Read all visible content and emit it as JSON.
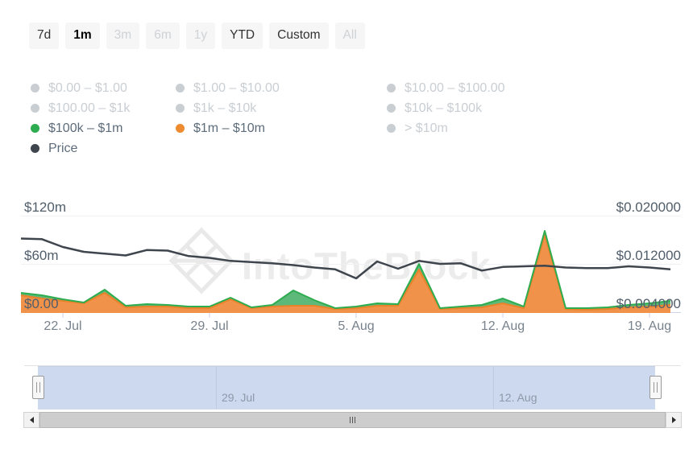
{
  "range_selector": {
    "buttons": [
      {
        "label": "7d",
        "state": "enabled"
      },
      {
        "label": "1m",
        "state": "selected"
      },
      {
        "label": "3m",
        "state": "disabled"
      },
      {
        "label": "6m",
        "state": "disabled"
      },
      {
        "label": "1y",
        "state": "disabled"
      },
      {
        "label": "YTD",
        "state": "enabled"
      },
      {
        "label": "Custom",
        "state": "enabled"
      },
      {
        "label": "All",
        "state": "disabled"
      }
    ]
  },
  "legend": {
    "items": [
      {
        "label": "$0.00 – $1.00",
        "active": false,
        "color": "#c9ced3"
      },
      {
        "label": "$1.00 – $10.00",
        "active": false,
        "color": "#c9ced3"
      },
      {
        "label": "$10.00 – $100.00",
        "active": false,
        "color": "#c9ced3"
      },
      {
        "label": "$100.00 – $1k",
        "active": false,
        "color": "#c9ced3"
      },
      {
        "label": "$1k – $10k",
        "active": false,
        "color": "#c9ced3"
      },
      {
        "label": "$10k – $100k",
        "active": false,
        "color": "#c9ced3"
      },
      {
        "label": "$100k – $1m",
        "active": true,
        "color": "#2eac50"
      },
      {
        "label": "$1m – $10m",
        "active": true,
        "color": "#ee8a2f"
      },
      {
        "label": "> $10m",
        "active": false,
        "color": "#c9ced3"
      },
      {
        "label": "Price",
        "active": true,
        "color": "#3e454d"
      }
    ]
  },
  "watermark": {
    "text": "IntoTheBlock"
  },
  "chart_data": {
    "type": "area",
    "subtype": "stacked areas (volume buckets, left axis $m) with overlaid price line (right axis $)",
    "x_tick_labels": [
      "22. Jul",
      "29. Jul",
      "5. Aug",
      "12. Aug",
      "19. Aug"
    ],
    "dates": [
      "20 Jul",
      "21 Jul",
      "22 Jul",
      "23 Jul",
      "24 Jul",
      "25 Jul",
      "26 Jul",
      "27 Jul",
      "28 Jul",
      "29 Jul",
      "30 Jul",
      "31 Jul",
      "1 Aug",
      "2 Aug",
      "3 Aug",
      "4 Aug",
      "5 Aug",
      "6 Aug",
      "7 Aug",
      "8 Aug",
      "9 Aug",
      "10 Aug",
      "11 Aug",
      "12 Aug",
      "13 Aug",
      "14 Aug",
      "15 Aug",
      "16 Aug",
      "17 Aug",
      "18 Aug",
      "19 Aug",
      "20 Aug"
    ],
    "left_axis": {
      "labels": [
        "$120m",
        "$60m",
        "$0.00"
      ],
      "values_m": [
        120,
        60,
        0
      ]
    },
    "right_axis": {
      "labels": [
        "$0.020000",
        "$0.012000",
        "$0.004000"
      ],
      "values_usd": [
        0.02,
        0.012,
        0.004
      ]
    },
    "grid": true,
    "legend_position": "top-left",
    "series": [
      {
        "name": "$100k – $1m",
        "type": "area",
        "stacked": true,
        "axis": "left",
        "unit": "$m",
        "stroke": "#2eac50",
        "fill": "#5cb97a",
        "values_m": [
          3,
          4,
          2,
          1,
          4,
          2,
          3,
          2,
          2,
          2,
          2,
          1,
          2,
          19,
          7,
          1,
          2,
          3,
          2,
          7,
          1,
          2,
          3,
          6,
          2,
          5,
          1,
          2,
          2,
          3,
          4,
          5
        ]
      },
      {
        "name": "$1m – $10m",
        "type": "area",
        "stacked": true,
        "axis": "left",
        "unit": "$m",
        "stroke": "#e8822b",
        "fill": "#f0924a",
        "values_m": [
          21,
          17,
          14,
          11,
          24,
          6,
          7,
          7,
          5,
          5,
          16,
          5,
          7,
          8,
          8,
          4,
          5,
          8,
          8,
          53,
          4,
          5,
          6,
          11,
          5,
          96,
          4,
          3,
          4,
          6,
          7,
          9
        ]
      },
      {
        "name": "Price",
        "type": "line",
        "axis": "right",
        "unit": "$",
        "stroke": "#3f454d",
        "values_usd": [
          0.0162,
          0.0161,
          0.0148,
          0.014,
          0.0137,
          0.0134,
          0.0143,
          0.0142,
          0.0133,
          0.013,
          0.0125,
          0.0123,
          0.0121,
          0.0118,
          0.0114,
          0.0111,
          0.0096,
          0.0124,
          0.0112,
          0.0125,
          0.012,
          0.0121,
          0.0109,
          0.0115,
          0.0116,
          0.0117,
          0.0114,
          0.0113,
          0.0113,
          0.0116,
          0.0114,
          0.0111
        ]
      }
    ]
  },
  "navigator": {
    "labels": [
      "29. Jul",
      "12. Aug"
    ],
    "mask_color": "#cdd9ef"
  },
  "colors": {
    "green": "#2eac50",
    "green_fill": "#5cb97a",
    "orange": "#e8822b",
    "orange_fill": "#f0924a",
    "price_line": "#3f454d",
    "axis_label": "#515e6b",
    "x_label": "#78828c",
    "tick": "#ccd6eb",
    "gridline": "#f0f1f4",
    "legend_active_text": "#5d6c7b",
    "legend_disabled": "#c9ced3",
    "button_bg": "#f6f6f6",
    "watermark": "#ececec"
  }
}
